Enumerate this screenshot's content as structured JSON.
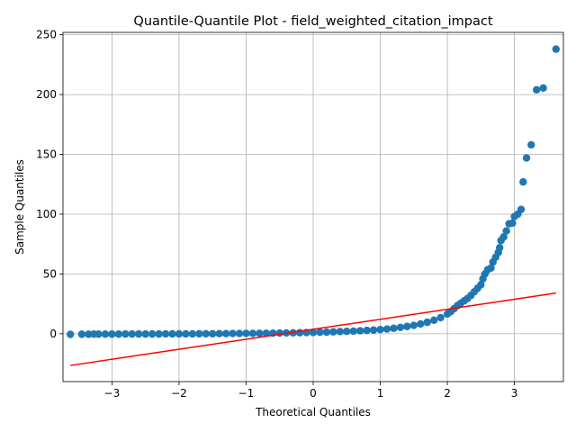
{
  "chart_data": {
    "type": "scatter",
    "title": "Quantile-Quantile Plot - field_weighted_citation_impact",
    "xlabel": "Theoretical Quantiles",
    "ylabel": "Sample Quantiles",
    "xlim": [
      -3.73,
      3.73
    ],
    "ylim": [
      -40,
      252
    ],
    "xticks": [
      -3,
      -2,
      -1,
      0,
      1,
      2,
      3
    ],
    "yticks": [
      0,
      50,
      100,
      150,
      200,
      250
    ],
    "grid": true,
    "point_color": "#1f77b4",
    "line_color": "#ff0000",
    "reference_line": {
      "x": [
        -3.62,
        3.62
      ],
      "y": [
        -26.5,
        34.0
      ]
    },
    "series": [
      {
        "values_description_ref": "sample quantiles vs theoretical quantiles",
        "points": [
          [
            -3.62,
            -0.5
          ],
          [
            -3.45,
            -0.4
          ],
          [
            -3.35,
            -0.4
          ],
          [
            -3.27,
            -0.3
          ],
          [
            -3.2,
            -0.3
          ],
          [
            -3.1,
            -0.3
          ],
          [
            -3.0,
            -0.3
          ],
          [
            -2.9,
            -0.3
          ],
          [
            -2.8,
            -0.2
          ],
          [
            -2.7,
            -0.2
          ],
          [
            -2.6,
            -0.2
          ],
          [
            -2.5,
            -0.2
          ],
          [
            -2.4,
            -0.2
          ],
          [
            -2.3,
            -0.2
          ],
          [
            -2.2,
            -0.1
          ],
          [
            -2.1,
            -0.1
          ],
          [
            -2.0,
            -0.1
          ],
          [
            -1.9,
            -0.1
          ],
          [
            -1.8,
            -0.1
          ],
          [
            -1.7,
            0.0
          ],
          [
            -1.6,
            0.0
          ],
          [
            -1.5,
            0.0
          ],
          [
            -1.4,
            0.1
          ],
          [
            -1.3,
            0.1
          ],
          [
            -1.2,
            0.2
          ],
          [
            -1.1,
            0.2
          ],
          [
            -1.0,
            0.3
          ],
          [
            -0.9,
            0.3
          ],
          [
            -0.8,
            0.4
          ],
          [
            -0.7,
            0.4
          ],
          [
            -0.6,
            0.5
          ],
          [
            -0.5,
            0.6
          ],
          [
            -0.4,
            0.7
          ],
          [
            -0.3,
            0.8
          ],
          [
            -0.2,
            0.9
          ],
          [
            -0.1,
            1.0
          ],
          [
            0.0,
            1.1
          ],
          [
            0.1,
            1.3
          ],
          [
            0.2,
            1.4
          ],
          [
            0.3,
            1.6
          ],
          [
            0.4,
            1.8
          ],
          [
            0.5,
            2.0
          ],
          [
            0.6,
            2.2
          ],
          [
            0.7,
            2.5
          ],
          [
            0.8,
            2.8
          ],
          [
            0.9,
            3.1
          ],
          [
            1.0,
            3.5
          ],
          [
            1.1,
            4.0
          ],
          [
            1.2,
            4.6
          ],
          [
            1.3,
            5.3
          ],
          [
            1.4,
            6.1
          ],
          [
            1.5,
            7.0
          ],
          [
            1.6,
            8.2
          ],
          [
            1.7,
            9.6
          ],
          [
            1.8,
            11.3
          ],
          [
            1.9,
            13.5
          ],
          [
            2.0,
            16.5
          ],
          [
            2.05,
            18.5
          ],
          [
            2.1,
            21.0
          ],
          [
            2.15,
            23.5
          ],
          [
            2.2,
            25.5
          ],
          [
            2.25,
            27.5
          ],
          [
            2.3,
            29.5
          ],
          [
            2.35,
            32.0
          ],
          [
            2.4,
            35.0
          ],
          [
            2.45,
            38.0
          ],
          [
            2.5,
            41.0
          ],
          [
            2.53,
            46.0
          ],
          [
            2.56,
            50.0
          ],
          [
            2.6,
            53.5
          ],
          [
            2.65,
            55.0
          ],
          [
            2.68,
            60.0
          ],
          [
            2.72,
            64.0
          ],
          [
            2.76,
            68.0
          ],
          [
            2.78,
            72.0
          ],
          [
            2.8,
            78.0
          ],
          [
            2.84,
            81.0
          ],
          [
            2.88,
            86.0
          ],
          [
            2.92,
            92.0
          ],
          [
            2.97,
            92.5
          ],
          [
            3.0,
            98.0
          ],
          [
            3.05,
            100.0
          ],
          [
            3.1,
            104.0
          ],
          [
            3.13,
            127.0
          ],
          [
            3.18,
            147.0
          ],
          [
            3.25,
            158.0
          ],
          [
            3.33,
            204.0
          ],
          [
            3.43,
            205.5
          ],
          [
            3.62,
            238.0
          ]
        ]
      }
    ]
  }
}
